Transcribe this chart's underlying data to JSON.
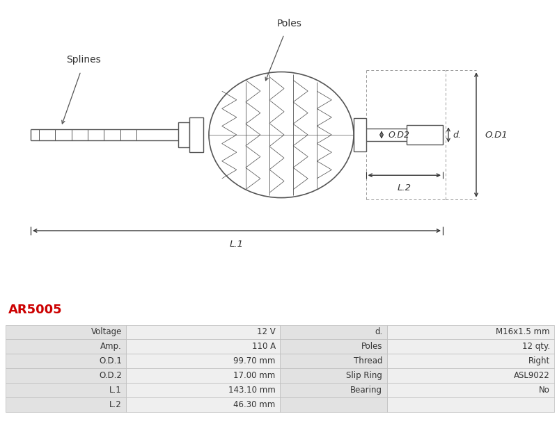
{
  "title_code": "AR5005",
  "title_color": "#cc0000",
  "bg_color": "#ffffff",
  "table_data": [
    [
      "Voltage",
      "12 V",
      "d.",
      "M16x1.5 mm"
    ],
    [
      "Amp.",
      "110 A",
      "Poles",
      "12 qty."
    ],
    [
      "O.D.1",
      "99.70 mm",
      "Thread",
      "Right"
    ],
    [
      "O.D.2",
      "17.00 mm",
      "Slip Ring",
      "ASL9022"
    ],
    [
      "L.1",
      "143.10 mm",
      "Bearing",
      "No"
    ],
    [
      "L.2",
      "46.30 mm",
      "",
      ""
    ]
  ],
  "label_Poles": "Poles",
  "label_Splines": "Splines",
  "label_OD1": "O.D1",
  "label_OD2": "O.D2",
  "label_d": "d.",
  "label_L1": "L.1",
  "label_L2": "L.2",
  "line_color": "#555555",
  "dim_color": "#333333"
}
